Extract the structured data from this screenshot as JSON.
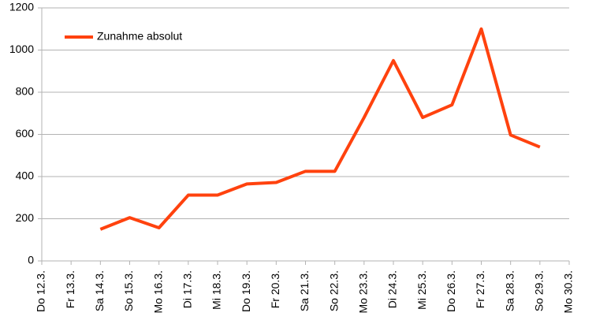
{
  "chart_data": {
    "type": "line",
    "categories": [
      "Do 12.3.",
      "Fr 13.3.",
      "Sa 14.3.",
      "So 15.3.",
      "Mo 16.3.",
      "Di 17.3.",
      "Mi 18.3.",
      "Do 19.3.",
      "Fr 20.3.",
      "Sa 21.3.",
      "So 22.3.",
      "Mo 23.3.",
      "Di 24.3.",
      "Mi 25.3.",
      "Do 26.3.",
      "Fr 27.3.",
      "Sa 28.3.",
      "So 29.3.",
      "Mo 30.3."
    ],
    "series": [
      {
        "name": "Zunahme absolut",
        "color": "#ff420e",
        "values": [
          null,
          null,
          150,
          205,
          157,
          312,
          312,
          365,
          372,
          425,
          425,
          680,
          950,
          680,
          740,
          1100,
          597,
          540,
          null
        ]
      }
    ],
    "ylim": [
      0,
      1200
    ],
    "yticks": [
      0,
      200,
      400,
      600,
      800,
      1000,
      1200
    ],
    "grid": true,
    "legend": "top-left"
  }
}
